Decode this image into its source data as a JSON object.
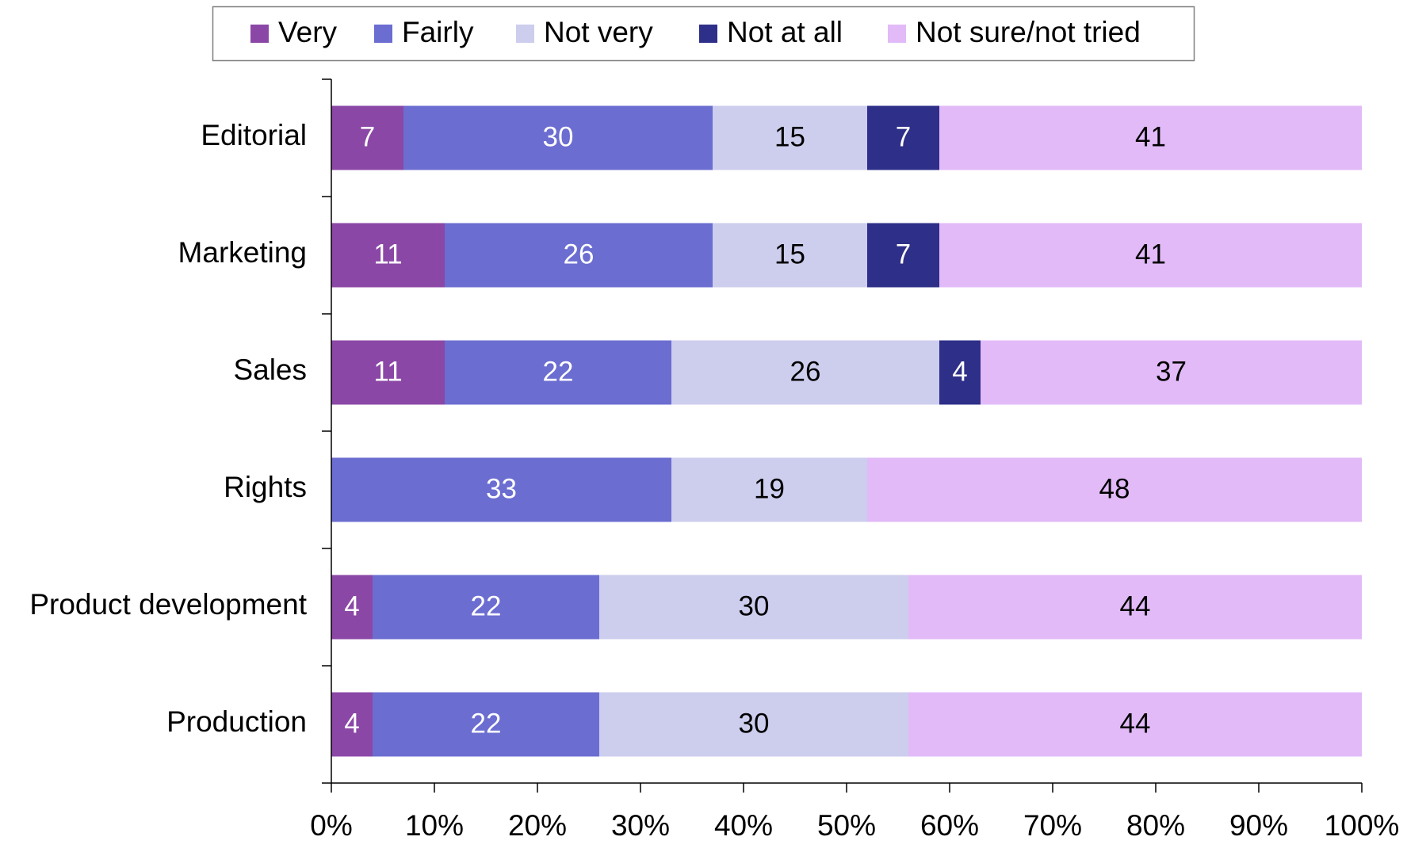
{
  "chart_data": {
    "type": "bar",
    "orientation": "horizontal",
    "stacked": true,
    "percent_stacked": true,
    "categories": [
      "Editorial",
      "Marketing",
      "Sales",
      "Rights",
      "Product development",
      "Production"
    ],
    "series": [
      {
        "name": "Very",
        "color": "#8b47a6",
        "label_color": "#ffffff",
        "values": [
          7,
          11,
          11,
          0,
          4,
          4
        ]
      },
      {
        "name": "Fairly",
        "color": "#6b6dd1",
        "label_color": "#ffffff",
        "values": [
          30,
          26,
          22,
          33,
          22,
          22
        ]
      },
      {
        "name": "Not very",
        "color": "#cdcdee",
        "label_color": "#000000",
        "values": [
          15,
          15,
          26,
          19,
          30,
          30
        ]
      },
      {
        "name": "Not at all",
        "color": "#2e2f88",
        "label_color": "#ffffff",
        "values": [
          7,
          7,
          4,
          0,
          0,
          0
        ]
      },
      {
        "name": "Not sure/not tried",
        "color": "#e2baf8",
        "label_color": "#000000",
        "values": [
          41,
          41,
          37,
          48,
          44,
          44
        ]
      }
    ],
    "x_ticks": [
      "0%",
      "10%",
      "20%",
      "30%",
      "40%",
      "50%",
      "60%",
      "70%",
      "80%",
      "90%",
      "100%"
    ],
    "xlim": [
      0,
      100
    ],
    "title": "",
    "xlabel": "",
    "ylabel": "",
    "grid": false,
    "legend_position": "top"
  }
}
